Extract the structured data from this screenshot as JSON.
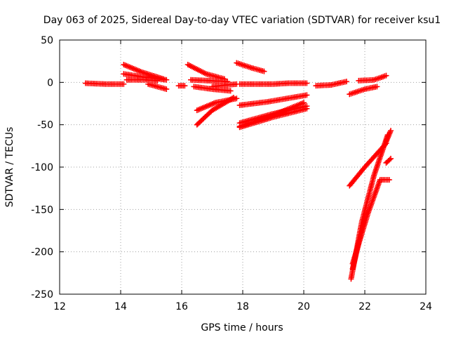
{
  "chart_data": {
    "type": "scatter",
    "title": "Day 063 of 2025, Sidereal Day-to-day VTEC variation (SDTVAR) for receiver ksu1",
    "xlabel": "GPS time / hours",
    "ylabel": "SDTVAR / TECUs",
    "xlim": [
      12,
      24
    ],
    "ylim": [
      -250,
      50
    ],
    "xticks": [
      12,
      14,
      16,
      18,
      20,
      22,
      24
    ],
    "yticks": [
      50,
      0,
      -50,
      -100,
      -150,
      -200,
      -250
    ],
    "grid": true,
    "legend": "none",
    "marker": "plus",
    "color": "#ff0000",
    "series": [
      {
        "points": [
          [
            12.85,
            -1
          ],
          [
            13.5,
            -2
          ],
          [
            14.1,
            -2
          ]
        ]
      },
      {
        "points": [
          [
            14.1,
            21
          ],
          [
            14.7,
            12
          ],
          [
            15.4,
            4
          ]
        ]
      },
      {
        "points": [
          [
            14.1,
            10
          ],
          [
            14.8,
            6
          ],
          [
            15.5,
            3
          ]
        ]
      },
      {
        "points": [
          [
            14.2,
            3
          ],
          [
            14.8,
            3
          ],
          [
            15.2,
            2
          ]
        ]
      },
      {
        "points": [
          [
            14.9,
            -2
          ],
          [
            15.2,
            -5
          ],
          [
            15.5,
            -8
          ]
        ]
      },
      {
        "points": [
          [
            15.9,
            -4
          ],
          [
            16.1,
            -4
          ]
        ]
      },
      {
        "points": [
          [
            16.2,
            21
          ],
          [
            16.8,
            10
          ],
          [
            17.4,
            4
          ]
        ]
      },
      {
        "points": [
          [
            16.3,
            3
          ],
          [
            16.9,
            2
          ],
          [
            17.5,
            1
          ]
        ]
      },
      {
        "points": [
          [
            16.4,
            -5
          ],
          [
            17.0,
            -8
          ],
          [
            17.6,
            -10
          ]
        ]
      },
      {
        "points": [
          [
            16.5,
            -50
          ],
          [
            17.0,
            -33
          ],
          [
            17.7,
            -18
          ]
        ]
      },
      {
        "points": [
          [
            16.5,
            -33
          ],
          [
            17.1,
            -24
          ],
          [
            17.8,
            -19
          ]
        ]
      },
      {
        "points": [
          [
            17.0,
            -5
          ],
          [
            17.5,
            -3
          ],
          [
            17.8,
            -2
          ]
        ]
      },
      {
        "points": [
          [
            17.8,
            23
          ],
          [
            18.3,
            17
          ],
          [
            18.7,
            13
          ]
        ]
      },
      {
        "points": [
          [
            17.9,
            -2
          ],
          [
            18.5,
            -2
          ],
          [
            19.0,
            -2
          ],
          [
            19.5,
            -1
          ],
          [
            20.1,
            -1
          ]
        ]
      },
      {
        "points": [
          [
            17.9,
            -27
          ],
          [
            18.8,
            -23
          ],
          [
            20.1,
            -15
          ]
        ]
      },
      {
        "points": [
          [
            17.9,
            -48
          ],
          [
            19.0,
            -37
          ],
          [
            20.1,
            -28
          ]
        ]
      },
      {
        "points": [
          [
            17.9,
            -53
          ],
          [
            19.0,
            -41
          ],
          [
            20.1,
            -31
          ]
        ]
      },
      {
        "points": [
          [
            17.9,
            -52
          ],
          [
            18.9,
            -40
          ],
          [
            20.0,
            -24
          ]
        ]
      },
      {
        "points": [
          [
            20.4,
            -4
          ],
          [
            20.9,
            -3
          ],
          [
            21.4,
            1
          ]
        ]
      },
      {
        "points": [
          [
            21.5,
            -14
          ],
          [
            22.0,
            -8
          ],
          [
            22.4,
            -5
          ]
        ]
      },
      {
        "points": [
          [
            21.8,
            2
          ],
          [
            22.3,
            3
          ],
          [
            22.7,
            8
          ]
        ]
      },
      {
        "points": [
          [
            21.5,
            -122
          ],
          [
            22.0,
            -100
          ],
          [
            22.7,
            -72
          ]
        ]
      },
      {
        "points": [
          [
            21.55,
            -232
          ],
          [
            21.9,
            -165
          ],
          [
            22.3,
            -110
          ],
          [
            22.75,
            -62
          ]
        ]
      },
      {
        "points": [
          [
            21.6,
            -214
          ],
          [
            22.1,
            -155
          ],
          [
            22.5,
            -115
          ],
          [
            22.8,
            -115
          ]
        ]
      },
      {
        "points": [
          [
            21.6,
            -220
          ],
          [
            21.8,
            -190
          ],
          [
            22.0,
            -160
          ]
        ]
      },
      {
        "points": [
          [
            22.7,
            -70
          ],
          [
            22.85,
            -57
          ]
        ]
      },
      {
        "points": [
          [
            22.7,
            -95
          ],
          [
            22.85,
            -90
          ]
        ]
      }
    ]
  }
}
